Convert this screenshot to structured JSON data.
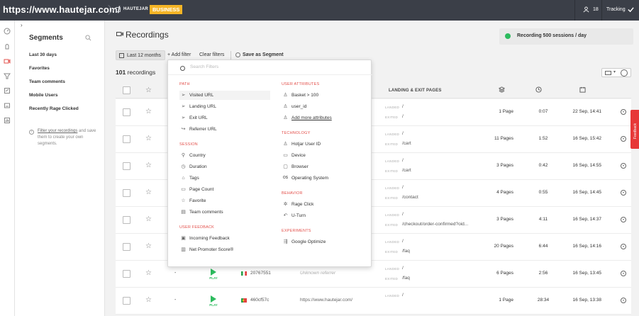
{
  "topbar": {
    "url": "https://www.hautejar.com/",
    "site_name": "HAUTEJAR",
    "plan_badge": "BUSINESS",
    "users_count": "18",
    "tracking_label": "Tracking"
  },
  "segments": {
    "title": "Segments",
    "items": [
      "Last 30 days",
      "Favorites",
      "Team comments",
      "Mobile Users",
      "Recently Rage Clicked"
    ],
    "note_link": "Filter your recordings",
    "note_rest": " and save them to create your own segments."
  },
  "main": {
    "title": "Recordings",
    "badge": "Recording 500 sessions / day",
    "date_filter": "Last 12 months",
    "add_filter": "+ Add filter",
    "clear_filters": "Clear filters",
    "save_segment": "Save as Segment",
    "count_number": "101",
    "count_label": " recordings",
    "col_landing_exit": "LANDING & EXIT PAGES"
  },
  "row_labels": {
    "landed": "LANDED",
    "exited": "EXITED",
    "play": "PLAY"
  },
  "rows": [
    {
      "landed": "/",
      "exited": "/",
      "pages": "1 Page",
      "duration": "0:07",
      "date": "22 Sep, 14:41"
    },
    {
      "landed": "/",
      "exited": "/cart",
      "pages": "11 Pages",
      "duration": "1:52",
      "date": "16 Sep, 15:42"
    },
    {
      "landed": "/",
      "exited": "/cart",
      "pages": "3 Pages",
      "duration": "0:42",
      "date": "16 Sep, 14:55"
    },
    {
      "landed": "/",
      "exited": "/contact",
      "pages": "4 Pages",
      "duration": "0:55",
      "date": "16 Sep, 14:45"
    },
    {
      "landed": "/",
      "exited": "/checkout/order-confirmed?oid...",
      "pages": "3 Pages",
      "duration": "4:11",
      "date": "16 Sep, 14:37"
    },
    {
      "landed": "/",
      "exited": "/faq",
      "pages": "20 Pages",
      "duration": "6:44",
      "date": "16 Sep, 14:16"
    },
    {
      "user": "-",
      "ip": "20767551",
      "referrer": "Unknown referrer",
      "landed": "/",
      "exited": "/faq",
      "pages": "6 Pages",
      "duration": "2:56",
      "date": "16 Sep, 13:45"
    },
    {
      "user": "-",
      "ip": "460cf57c",
      "referrer": "https://www.hautejar.com/",
      "landed": "/",
      "exited": "",
      "pages": "1 Page",
      "duration": "28:34",
      "date": "16 Sep, 13:38"
    }
  ],
  "filter_menu": {
    "placeholder": "Search Filters",
    "left": [
      {
        "group": "PATH",
        "options": [
          {
            "label": "Visited URL",
            "icon": "arrow-icon"
          },
          {
            "label": "Landing URL",
            "icon": "arrow-icon"
          },
          {
            "label": "Exit URL",
            "icon": "arrow-icon"
          },
          {
            "label": "Referrer URL",
            "icon": "share-icon"
          }
        ]
      },
      {
        "group": "SESSION",
        "options": [
          {
            "label": "Country",
            "icon": "pin-icon"
          },
          {
            "label": "Duration",
            "icon": "clock-icon"
          },
          {
            "label": "Tags",
            "icon": "tag-icon"
          },
          {
            "label": "Page Count",
            "icon": "page-icon"
          },
          {
            "label": "Favorite",
            "icon": "star-icon"
          },
          {
            "label": "Team comments",
            "icon": "comment-icon"
          }
        ]
      },
      {
        "group": "USER FEEDBACK",
        "options": [
          {
            "label": "Incoming Feedback",
            "icon": "feedback-icon"
          },
          {
            "label": "Net Promoter Score®",
            "icon": "chart-icon"
          }
        ]
      }
    ],
    "right": [
      {
        "group": "USER ATTRIBUTES",
        "options": [
          {
            "label": "Basket > 100",
            "icon": "person-icon"
          },
          {
            "label": "user_id",
            "icon": "person-icon"
          },
          {
            "label": "Add more attributes",
            "icon": "person-icon"
          }
        ]
      },
      {
        "group": "TECHNOLOGY",
        "options": [
          {
            "label": "Hotjar User ID",
            "icon": "person-icon"
          },
          {
            "label": "Device",
            "icon": "monitor-icon"
          },
          {
            "label": "Browser",
            "icon": "browser-icon"
          },
          {
            "label": "Operating System",
            "icon": "os-icon"
          }
        ]
      },
      {
        "group": "BEHAVIOR",
        "options": [
          {
            "label": "Rage Click",
            "icon": "rage-click-icon"
          },
          {
            "label": "U-Turn",
            "icon": "uturn-icon"
          }
        ]
      },
      {
        "group": "EXPERIMENTS",
        "options": [
          {
            "label": "Google Optimize",
            "icon": "experiment-icon"
          }
        ]
      }
    ]
  },
  "feedback_tab": "Feedback",
  "colors": {
    "accent": "#e3504b",
    "plan": "#f5b526",
    "play": "#2dbb5e",
    "topbar": "#3b3f48"
  }
}
